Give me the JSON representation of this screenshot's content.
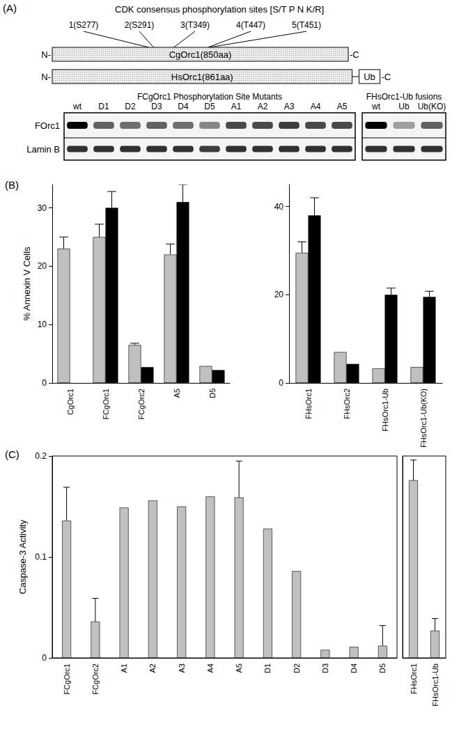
{
  "panel_a": {
    "label": "(A)",
    "sites_title": "CDK consensus phosphorylation sites [S/T P N K/R]",
    "sites": [
      {
        "label": "1(S277)",
        "position": 277
      },
      {
        "label": "2(S291)",
        "position": 291
      },
      {
        "label": "3(T349)",
        "position": 349
      },
      {
        "label": "4(T447)",
        "position": 447
      },
      {
        "label": "5(T451)",
        "position": 451
      }
    ],
    "proteins": [
      {
        "name": "CgOrc1(850aa)",
        "length": 850
      },
      {
        "name": "HsOrc1(861aa)",
        "length": 861,
        "tag": "Ub"
      }
    ],
    "n_label": "N-",
    "c_label": "-C",
    "rows": [
      "FOrc1",
      "Lamin B"
    ],
    "blots": [
      {
        "title": "FCgOrc1 Phosphorylation Site Mutants",
        "lanes": [
          "wt",
          "D1",
          "D2",
          "D3",
          "D4",
          "D5",
          "A1",
          "A2",
          "A3",
          "A4",
          "A5"
        ],
        "bands": {
          "FOrc1": [
            1.0,
            0.6,
            0.55,
            0.6,
            0.55,
            0.45,
            0.7,
            0.7,
            0.75,
            0.7,
            0.7
          ],
          "Lamin B": [
            0.8,
            0.8,
            0.8,
            0.8,
            0.8,
            0.75,
            0.8,
            0.8,
            0.8,
            0.8,
            0.8
          ]
        }
      },
      {
        "title": "FHsOrc1-Ub fusions",
        "lanes": [
          "wt",
          "Ub",
          "Ub(KO)"
        ],
        "bands": {
          "FOrc1": [
            1.0,
            0.35,
            0.6
          ],
          "Lamin B": [
            0.8,
            0.8,
            0.8
          ]
        }
      }
    ]
  },
  "chart_data": [
    {
      "type": "bar",
      "title": "(B)",
      "y_label": "% Annexin V Cells",
      "categories": [
        "CgOrc1",
        "FCgOrc1",
        "FCgOrc2",
        "A5",
        "D5"
      ],
      "series": [
        {
          "color": "#c0c0c0",
          "values": [
            23,
            25,
            6.5,
            22,
            2.9
          ],
          "errors": [
            2,
            2.2,
            0.3,
            1.8,
            null
          ]
        },
        {
          "color": "#000000",
          "values": [
            null,
            30,
            2.7,
            31,
            2.2
          ],
          "errors": [
            null,
            2.8,
            null,
            3,
            null
          ]
        }
      ],
      "ylim": [
        0,
        34
      ],
      "yticks": [
        0,
        10,
        20,
        30
      ]
    },
    {
      "type": "bar",
      "categories": [
        "FHsOrc1",
        "FHsOrc2",
        "FHsOrc1-Ub",
        "FHsOrc1-Ub(KO)"
      ],
      "series": [
        {
          "color": "#c0c0c0",
          "values": [
            29.5,
            7,
            3.3,
            3.6
          ],
          "errors": [
            2.5,
            null,
            null,
            null
          ]
        },
        {
          "color": "#000000",
          "values": [
            38,
            4.3,
            20,
            19.5
          ],
          "errors": [
            4,
            null,
            1.5,
            1.3
          ]
        }
      ],
      "ylim": [
        0,
        45
      ],
      "yticks": [
        0,
        20,
        40
      ]
    },
    {
      "type": "bar",
      "title": "(C)",
      "y_label": "Caspase-3 Activity",
      "categories": [
        "FCgOrc1",
        "FCgOrc2",
        "A1",
        "A2",
        "A3",
        "A4",
        "A5",
        "D1",
        "D2",
        "D3",
        "D4",
        "D5"
      ],
      "series": [
        {
          "color": "#c0c0c0",
          "values": [
            0.136,
            0.036,
            0.149,
            0.156,
            0.15,
            0.16,
            0.159,
            0.128,
            0.086,
            0.008,
            0.011,
            0.012
          ],
          "errors": [
            0.033,
            0.023,
            null,
            null,
            null,
            null,
            0.036,
            null,
            null,
            null,
            null,
            0.02
          ]
        }
      ],
      "ylim": [
        0,
        0.2
      ],
      "yticks": [
        0,
        0.1,
        0.2
      ]
    },
    {
      "type": "bar",
      "categories": [
        "FHsOrc1",
        "FHsOrc1-Ub"
      ],
      "series": [
        {
          "color": "#c0c0c0",
          "values": [
            0.176,
            0.027
          ],
          "errors": [
            0.02,
            0.012
          ]
        }
      ],
      "ylim": [
        0,
        0.2
      ],
      "tick_labels": "x"
    }
  ]
}
